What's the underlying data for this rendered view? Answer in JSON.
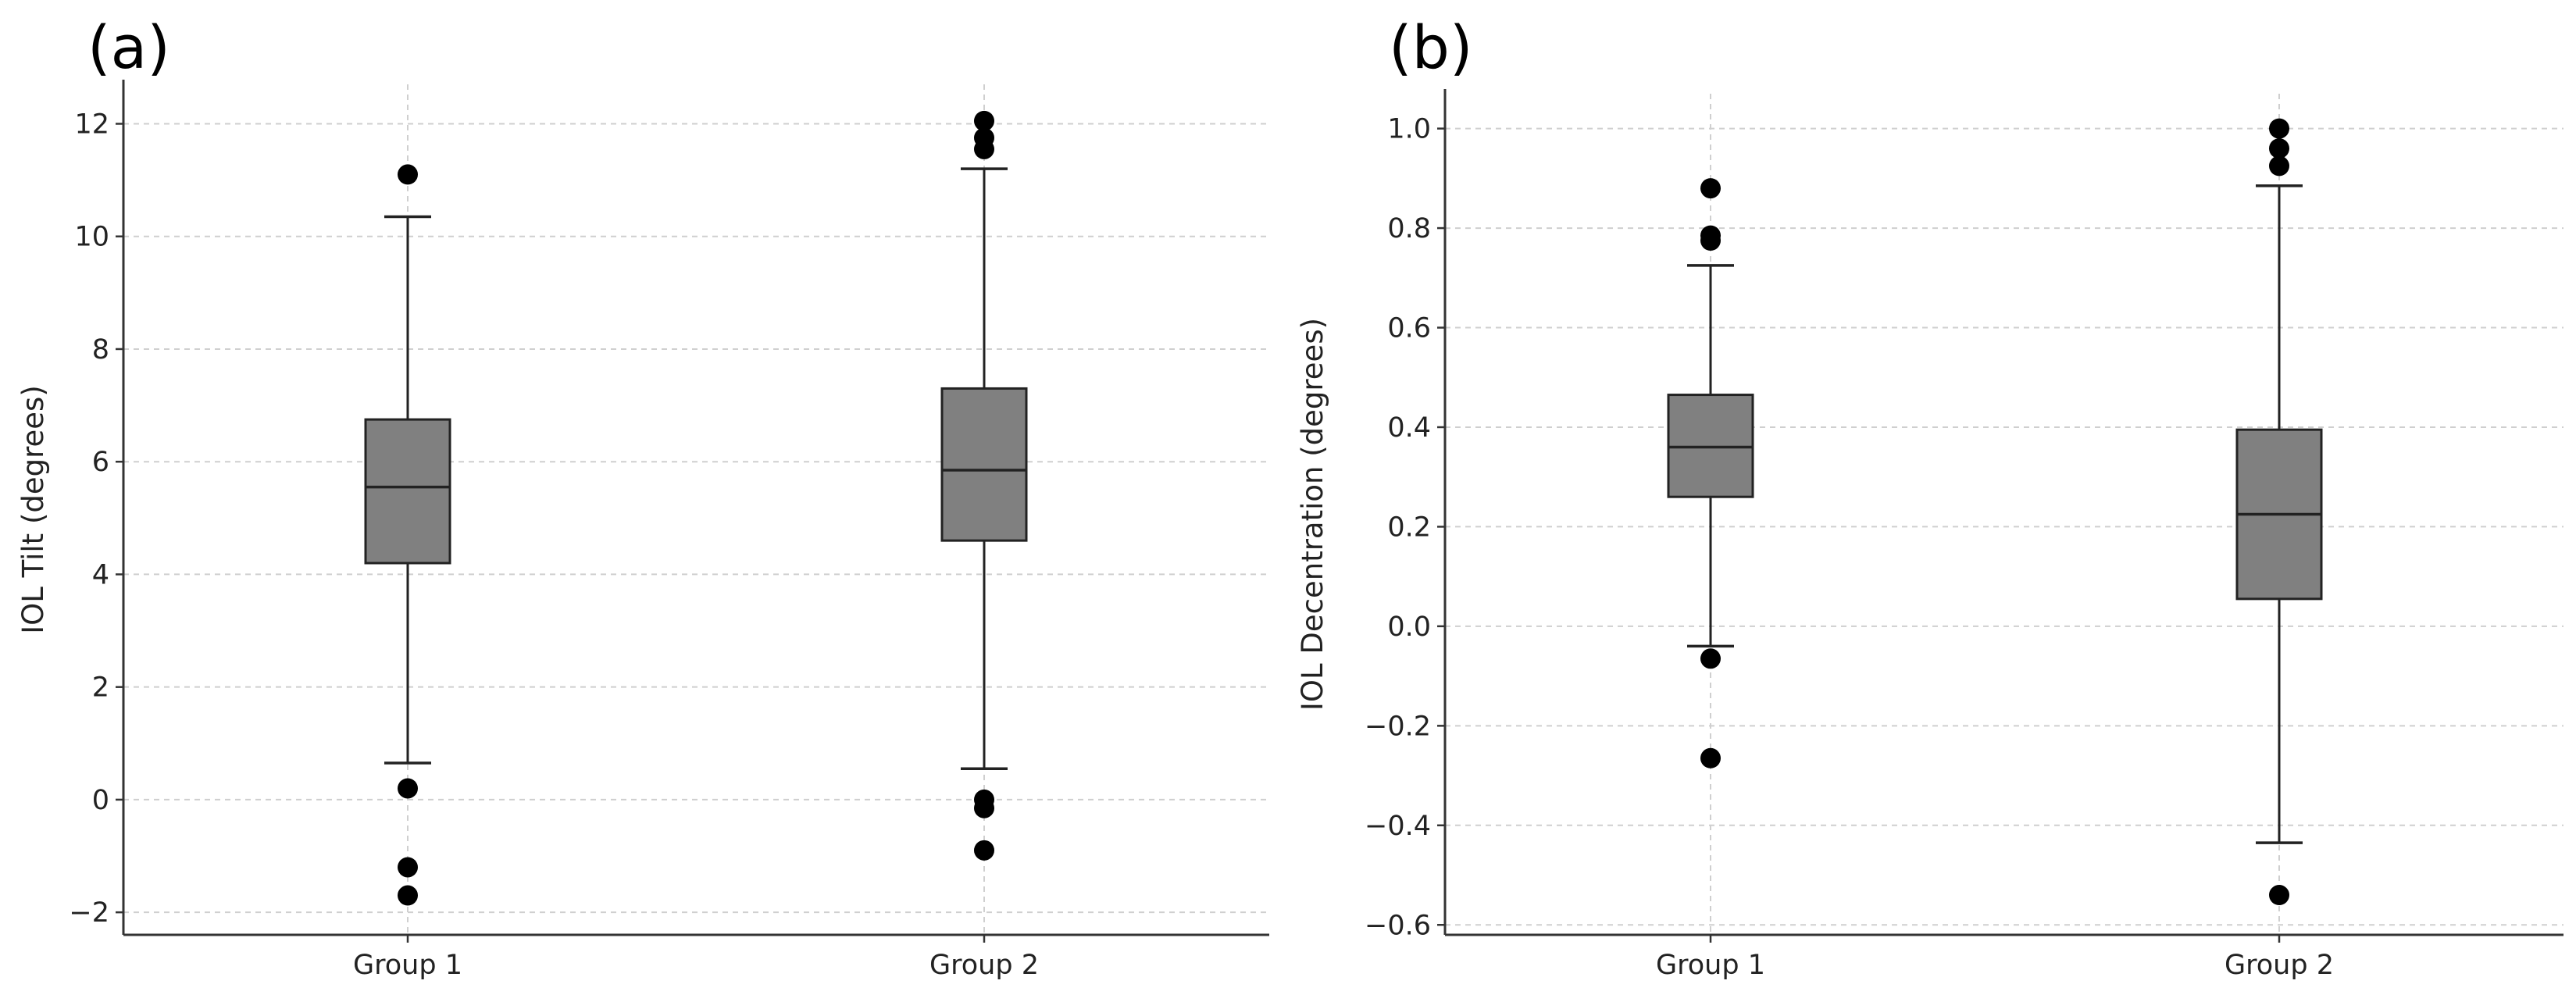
{
  "chart_data": [
    {
      "type": "box",
      "panel_label": "(a)",
      "title": "",
      "xlabel": "",
      "ylabel": "IOL Tilt (degrees)",
      "ylim": [
        -2.4,
        12.7
      ],
      "yticks": [
        -2,
        0,
        2,
        4,
        6,
        8,
        10,
        12
      ],
      "ytick_labels": [
        "−2",
        "0",
        "2",
        "4",
        "6",
        "8",
        "10",
        "12"
      ],
      "grid": true,
      "categories": [
        "Group 1",
        "Group 2"
      ],
      "boxes": [
        {
          "name": "Group 1",
          "whisker_low": 0.65,
          "q1": 4.2,
          "median": 5.55,
          "q3": 6.75,
          "whisker_high": 10.35,
          "outliers": [
            11.1,
            0.2,
            -1.2,
            -1.7
          ]
        },
        {
          "name": "Group 2",
          "whisker_low": 0.55,
          "q1": 4.6,
          "median": 5.85,
          "q3": 7.3,
          "whisker_high": 11.2,
          "outliers": [
            12.05,
            11.75,
            11.55,
            0.0,
            -0.15,
            -0.9
          ]
        }
      ],
      "box_color": "#808080"
    },
    {
      "type": "box",
      "panel_label": "(b)",
      "title": "",
      "xlabel": "",
      "ylabel": "IOL Decentration (degrees)",
      "ylim": [
        -0.62,
        1.07
      ],
      "yticks": [
        -0.6,
        -0.4,
        -0.2,
        0.0,
        0.2,
        0.4,
        0.6,
        0.8,
        1.0
      ],
      "ytick_labels": [
        "−0.6",
        "−0.4",
        "−0.2",
        "0.0",
        "0.2",
        "0.4",
        "0.6",
        "0.8",
        "1.0"
      ],
      "grid": true,
      "categories": [
        "Group 1",
        "Group 2"
      ],
      "boxes": [
        {
          "name": "Group 1",
          "whisker_low": -0.04,
          "q1": 0.26,
          "median": 0.36,
          "q3": 0.465,
          "whisker_high": 0.725,
          "outliers": [
            0.88,
            0.785,
            0.775,
            -0.065,
            -0.265
          ]
        },
        {
          "name": "Group 2",
          "whisker_low": -0.435,
          "q1": 0.055,
          "median": 0.225,
          "q3": 0.395,
          "whisker_high": 0.885,
          "outliers": [
            1.0,
            0.96,
            0.925,
            -0.54
          ]
        }
      ],
      "box_color": "#808080"
    }
  ]
}
